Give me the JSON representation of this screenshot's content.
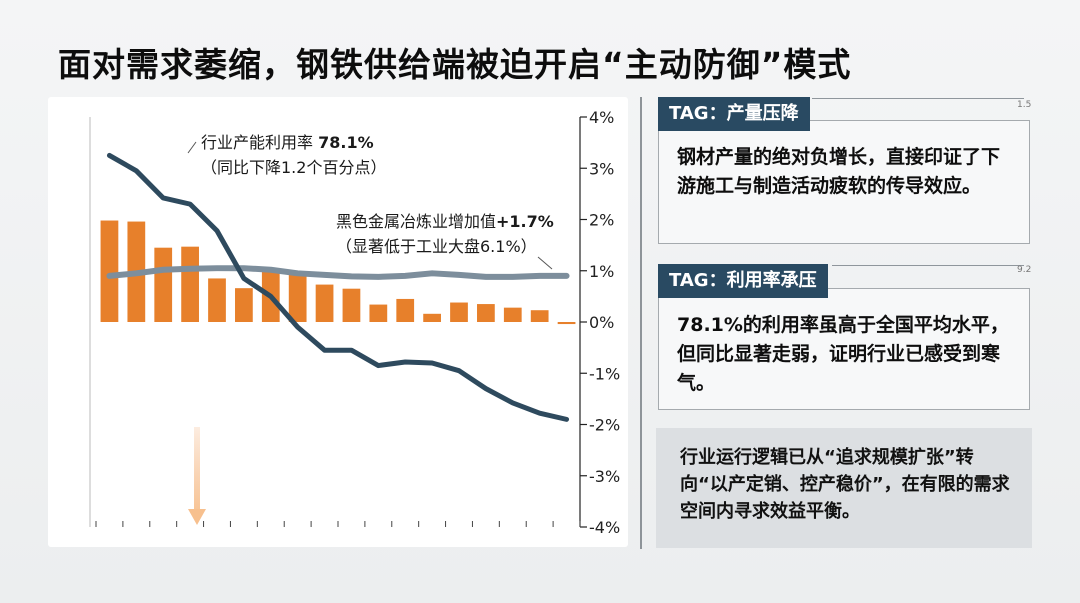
{
  "title": "面对需求萎缩，钢铁供给端被迫开启“主动防御”模式",
  "chart_data": {
    "type": "bar",
    "ylim": [
      -4,
      4
    ],
    "yticks": [
      "4%",
      "3%",
      "2%",
      "1%",
      "0%",
      "-1%",
      "-2%",
      "-3%",
      "-4%"
    ],
    "bar_values": [
      1.98,
      1.96,
      1.45,
      1.47,
      0.85,
      0.66,
      1.03,
      0.95,
      0.73,
      0.65,
      0.34,
      0.45,
      0.16,
      0.38,
      0.35,
      0.28,
      0.23,
      -0.04
    ],
    "series": [
      {
        "values": [
          0.9,
          0.95,
          1.02,
          1.04,
          1.05,
          1.05,
          1.02,
          0.95,
          0.92,
          0.89,
          0.88,
          0.9,
          0.95,
          0.92,
          0.88,
          0.88,
          0.9,
          0.9
        ],
        "color": "#7d8e9c"
      },
      {
        "values": [
          3.25,
          2.95,
          2.42,
          2.3,
          1.78,
          0.85,
          0.5,
          -0.1,
          -0.55,
          -0.55,
          -0.85,
          -0.78,
          -0.8,
          -0.95,
          -1.3,
          -1.58,
          -1.78,
          -1.9
        ],
        "color": "#2e4a5e"
      }
    ],
    "bar_color": "#e7802b",
    "grid": false,
    "annotations": [
      {
        "line1_prefix": "行业产能利用率 ",
        "line1_bold": "78.1%",
        "line2": "（同比下降1.2个百分点）"
      },
      {
        "line1_prefix": "黑色金属冶炼业增加值",
        "line1_bold": "+1.7%",
        "line2": "（显著低于工业大盘6.1%）"
      }
    ]
  },
  "cards": [
    {
      "tag": "TAG：产量压降",
      "num": "1.5",
      "text": "钢材产量的绝对负增长，直接印证了下游施工与制造活动疲软的传导效应。"
    },
    {
      "tag": "TAG：利用率承压",
      "num": "9.2",
      "text": "78.1%的利用率虽高于全国平均水平，但同比显著走弱，证明行业已感受到寒气。"
    }
  ],
  "summary": "行业运行逻辑已从“追求规模扩张”转向“以产定销、控产稳价”，在有限的需求空间内寻求效益平衡。"
}
